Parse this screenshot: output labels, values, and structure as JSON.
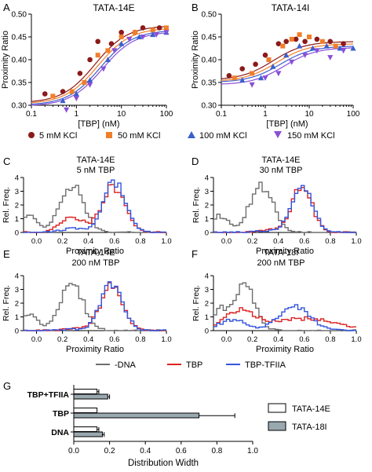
{
  "colors": {
    "k5": "#8b1a1a",
    "k50": "#f07f2a",
    "k100": "#3a5fcd",
    "k150": "#8a4fd8",
    "dna": "#6e6e6e",
    "tbp": "#dd2222",
    "tfiia": "#3355dd",
    "bar14e": "#ffffff",
    "bar18i": "#9aa8b0"
  },
  "panels": {
    "A": {
      "letter": "A",
      "title": "TATA-14E"
    },
    "B": {
      "letter": "B",
      "title": "TATA-14I"
    },
    "C": {
      "letter": "C",
      "title1": "TATA-14E",
      "title2": "5 nM TBP"
    },
    "D": {
      "letter": "D",
      "title1": "TATA-14E",
      "title2": "30 nM TBP"
    },
    "E": {
      "letter": "E",
      "title1": "TATA-14E",
      "title2": "200 nM TBP"
    },
    "F": {
      "letter": "F",
      "title1": "TATA-18I",
      "title2": "200 nM TBP"
    },
    "G": {
      "letter": "G"
    }
  },
  "legend_top": [
    {
      "label": "5 mM KCl",
      "marker": "circle",
      "color": "#8b1a1a"
    },
    {
      "label": "50 mM KCl",
      "marker": "square",
      "color": "#f07f2a"
    },
    {
      "label": "100 mM KCl",
      "marker": "triangle",
      "color": "#3a5fcd"
    },
    {
      "label": "150 mM KCl",
      "marker": "triangle-down",
      "color": "#8a4fd8"
    }
  ],
  "legend_hist": [
    {
      "label": "-DNA",
      "color": "#6e6e6e"
    },
    {
      "label": "TBP",
      "color": "#dd2222"
    },
    {
      "label": "TBP-TFIIA",
      "color": "#3355dd"
    }
  ],
  "legend_bar": [
    {
      "label": "TATA-14E",
      "color": "#ffffff"
    },
    {
      "label": "TATA-18I",
      "color": "#9aa8b0"
    }
  ],
  "chart_data": [
    {
      "id": "A",
      "type": "scatter",
      "title": "TATA-14E",
      "xlabel": "[TBP] (nM)",
      "ylabel": "Proximity Ratio",
      "xscale": "log",
      "xlim": [
        0.1,
        100
      ],
      "ylim": [
        0.3,
        0.5
      ],
      "xticks": [
        "0.1",
        "1",
        "10",
        "100"
      ],
      "yticks": [
        "0.30",
        "0.35",
        "0.40",
        "0.45",
        "0.50"
      ],
      "fits": [
        {
          "color": "#8b1a1a",
          "bottom": 0.305,
          "top": 0.475,
          "ec50": 2.6,
          "n": 1.2
        },
        {
          "color": "#f07f2a",
          "bottom": 0.303,
          "top": 0.47,
          "ec50": 3.0,
          "n": 1.2
        },
        {
          "color": "#3a5fcd",
          "bottom": 0.3,
          "top": 0.465,
          "ec50": 3.4,
          "n": 1.2
        },
        {
          "color": "#8a4fd8",
          "bottom": 0.298,
          "top": 0.462,
          "ec50": 3.8,
          "n": 1.2
        }
      ],
      "series": [
        {
          "name": "5 mM KCl",
          "marker": "circle",
          "color": "#8b1a1a",
          "x": [
            0.2,
            0.5,
            1.2,
            2,
            3,
            6,
            10,
            20,
            30,
            70
          ],
          "y": [
            0.325,
            0.33,
            0.37,
            0.4,
            0.44,
            0.435,
            0.46,
            0.46,
            0.47,
            0.47
          ]
        },
        {
          "name": "50 mM KCl",
          "marker": "square",
          "color": "#f07f2a",
          "x": [
            0.3,
            0.8,
            1.5,
            3,
            5,
            10,
            20,
            50,
            100
          ],
          "y": [
            0.32,
            0.33,
            0.35,
            0.41,
            0.42,
            0.45,
            0.46,
            0.465,
            0.47
          ]
        },
        {
          "name": "100 mM KCl",
          "marker": "triangle",
          "color": "#3a5fcd",
          "x": [
            0.5,
            1,
            2,
            5,
            10,
            25,
            50,
            100
          ],
          "y": [
            0.31,
            0.325,
            0.355,
            0.4,
            0.435,
            0.45,
            0.455,
            0.46
          ]
        },
        {
          "name": "150 mM KCl",
          "marker": "triangle-down",
          "color": "#8a4fd8",
          "x": [
            0.6,
            1,
            2,
            4,
            7,
            15,
            30,
            60,
            100
          ],
          "y": [
            0.29,
            0.315,
            0.345,
            0.38,
            0.42,
            0.445,
            0.45,
            0.455,
            0.46
          ]
        }
      ]
    },
    {
      "id": "B",
      "type": "scatter",
      "title": "TATA-14I",
      "xlabel": "[TBP] (nM)",
      "ylabel": "Proximity Ratio",
      "xscale": "log",
      "xlim": [
        0.1,
        100
      ],
      "ylim": [
        0.3,
        0.5
      ],
      "xticks": [
        "0.1",
        "1",
        "10",
        "100"
      ],
      "yticks": [
        "0.30",
        "0.35",
        "0.40",
        "0.45",
        "0.50"
      ],
      "fits": [
        {
          "color": "#8b1a1a",
          "bottom": 0.355,
          "top": 0.44,
          "ec50": 1.5,
          "n": 1.2
        },
        {
          "color": "#f07f2a",
          "bottom": 0.352,
          "top": 0.435,
          "ec50": 1.8,
          "n": 1.2
        },
        {
          "color": "#3a5fcd",
          "bottom": 0.35,
          "top": 0.43,
          "ec50": 2.2,
          "n": 1.2
        },
        {
          "color": "#8a4fd8",
          "bottom": 0.345,
          "top": 0.427,
          "ec50": 2.7,
          "n": 1.2
        }
      ],
      "series": [
        {
          "name": "5 mM KCl",
          "marker": "circle",
          "color": "#8b1a1a",
          "x": [
            0.15,
            0.3,
            0.6,
            1,
            2,
            3,
            5,
            8,
            15,
            30,
            60
          ],
          "y": [
            0.365,
            0.38,
            0.39,
            0.41,
            0.435,
            0.44,
            0.445,
            0.44,
            0.445,
            0.44,
            0.435
          ]
        },
        {
          "name": "50 mM KCl",
          "marker": "square",
          "color": "#f07f2a",
          "x": [
            0.2,
            0.5,
            1.2,
            2.5,
            4,
            6,
            10,
            20,
            40
          ],
          "y": [
            0.36,
            0.37,
            0.4,
            0.43,
            0.445,
            0.455,
            0.45,
            0.44,
            0.43
          ]
        },
        {
          "name": "100 mM KCl",
          "marker": "triangle",
          "color": "#3a5fcd",
          "x": [
            0.3,
            0.8,
            1.5,
            3,
            6,
            12,
            25,
            50,
            100
          ],
          "y": [
            0.355,
            0.36,
            0.385,
            0.41,
            0.43,
            0.425,
            0.43,
            0.425,
            0.425
          ]
        },
        {
          "name": "150 mM KCl",
          "marker": "triangle-down",
          "color": "#8a4fd8",
          "x": [
            0.5,
            1,
            2,
            4,
            8,
            15,
            30,
            60
          ],
          "y": [
            0.345,
            0.36,
            0.37,
            0.395,
            0.41,
            0.42,
            0.405,
            0.42
          ]
        }
      ]
    },
    {
      "id": "C",
      "type": "line",
      "title": "TATA-14E 5 nM TBP",
      "xlabel": "Proximity Ratio",
      "ylabel": "Rel. Freq.",
      "xlim": [
        -0.1,
        1.0
      ],
      "ylim": [
        0,
        4
      ],
      "xticks": [
        "0.0",
        "0.2",
        "0.4",
        "0.6",
        "0.8",
        "1.0"
      ],
      "yticks": [
        "0",
        "1",
        "2",
        "3",
        "4"
      ],
      "hist": [
        {
          "name": "-DNA",
          "color": "#6e6e6e",
          "mu": 0.27,
          "sigma": 0.09,
          "amp": 3.4,
          "mu2": -0.05,
          "sigma2": 0.06,
          "amp2": 1.2
        },
        {
          "name": "TBP",
          "color": "#dd2222",
          "mu": 0.59,
          "sigma": 0.09,
          "amp": 3.3,
          "mu2": 0.27,
          "sigma2": 0.09,
          "amp2": 1.1
        },
        {
          "name": "TBP-TFIIA",
          "color": "#3355dd",
          "mu": 0.6,
          "sigma": 0.085,
          "amp": 3.7,
          "mu2": 0.28,
          "sigma2": 0.08,
          "amp2": 0.3
        }
      ]
    },
    {
      "id": "D",
      "type": "line",
      "title": "TATA-14E 30 nM TBP",
      "xlabel": "Proximity Ratio",
      "ylabel": "Rel. Freq.",
      "xlim": [
        -0.1,
        1.0
      ],
      "ylim": [
        0,
        4
      ],
      "xticks": [
        "0.0",
        "0.2",
        "0.4",
        "0.6",
        "0.8",
        "1.0"
      ],
      "yticks": [
        "0",
        "1",
        "2",
        "3",
        "4"
      ],
      "hist": [
        {
          "name": "-DNA",
          "color": "#6e6e6e",
          "mu": 0.27,
          "sigma": 0.09,
          "amp": 3.4,
          "mu2": -0.05,
          "sigma2": 0.06,
          "amp2": 1.2
        },
        {
          "name": "TBP",
          "color": "#dd2222",
          "mu": 0.58,
          "sigma": 0.08,
          "amp": 3.3,
          "mu2": 0.3,
          "sigma2": 0.08,
          "amp2": 0.2
        },
        {
          "name": "TBP-TFIIA",
          "color": "#3355dd",
          "mu": 0.58,
          "sigma": 0.08,
          "amp": 3.5,
          "mu2": 0.3,
          "sigma2": 0.08,
          "amp2": 0.1
        }
      ]
    },
    {
      "id": "E",
      "type": "line",
      "title": "TATA-14E 200 nM TBP",
      "xlabel": "Proximity Ratio",
      "ylabel": "Rel. Freq.",
      "xlim": [
        -0.1,
        1.0
      ],
      "ylim": [
        0,
        4
      ],
      "xticks": [
        "0.0",
        "0.2",
        "0.4",
        "0.6",
        "0.8",
        "1.0"
      ],
      "yticks": [
        "0",
        "1",
        "2",
        "3",
        "4"
      ],
      "hist": [
        {
          "name": "-DNA",
          "color": "#6e6e6e",
          "mu": 0.27,
          "sigma": 0.09,
          "amp": 3.4,
          "mu2": -0.05,
          "sigma2": 0.06,
          "amp2": 1.2
        },
        {
          "name": "TBP",
          "color": "#dd2222",
          "mu": 0.58,
          "sigma": 0.085,
          "amp": 3.3,
          "mu2": 0.3,
          "sigma2": 0.08,
          "amp2": 0.2
        },
        {
          "name": "TBP-TFIIA",
          "color": "#3355dd",
          "mu": 0.58,
          "sigma": 0.085,
          "amp": 3.4,
          "mu2": 0.3,
          "sigma2": 0.08,
          "amp2": 0.1
        }
      ]
    },
    {
      "id": "F",
      "type": "line",
      "title": "TATA-18I 200 nM TBP",
      "xlabel": "Proximity Ratio",
      "ylabel": "Rel. Freq.",
      "xlim": [
        -0.1,
        1.0
      ],
      "ylim": [
        0,
        4
      ],
      "xticks": [
        "0.0",
        "0.2",
        "0.4",
        "0.6",
        "0.8",
        "1.0"
      ],
      "yticks": [
        "0",
        "1",
        "2",
        "3",
        "4"
      ],
      "hist": [
        {
          "name": "-DNA",
          "color": "#6e6e6e",
          "mu": 0.14,
          "sigma": 0.08,
          "amp": 3.3,
          "mu2": -0.05,
          "sigma2": 0.05,
          "amp2": 1.5
        },
        {
          "name": "TBP",
          "color": "#dd2222",
          "mu": 0.1,
          "sigma": 0.12,
          "amp": 1.4,
          "mu2": 0.6,
          "sigma2": 0.25,
          "amp2": 0.9
        },
        {
          "name": "TBP-TFIIA",
          "color": "#3355dd",
          "mu": 0.52,
          "sigma": 0.12,
          "amp": 1.8,
          "mu2": 0.05,
          "sigma2": 0.1,
          "amp2": 0.8
        }
      ]
    },
    {
      "id": "G",
      "type": "bar",
      "orientation": "horizontal",
      "xlabel": "Distribution Width",
      "xlim": [
        0,
        1.0
      ],
      "xticks": [
        "0.0",
        "0.2",
        "0.4",
        "0.6",
        "0.8",
        "1.0"
      ],
      "categories": [
        "TBP+TFIIA",
        "TBP",
        "DNA"
      ],
      "series": [
        {
          "name": "TATA-14E",
          "values": [
            0.13,
            0.13,
            0.13
          ],
          "errors": [
            0.01,
            0.0,
            0.01
          ]
        },
        {
          "name": "TATA-18I",
          "values": [
            0.19,
            0.7,
            0.16
          ],
          "errors": [
            0.01,
            0.2,
            0.01
          ]
        }
      ]
    }
  ]
}
